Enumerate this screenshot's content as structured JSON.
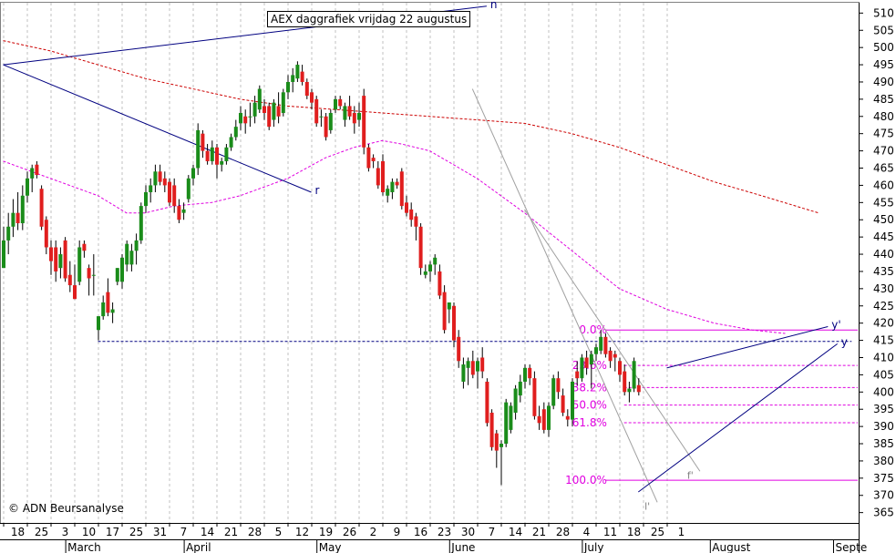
{
  "title": "AEX daggrafiek vrijdag 22 augustus",
  "credit": "© ADN Beursanalyse",
  "colors": {
    "up": "#1a8c1a",
    "down": "#e01e1e",
    "wick": "#000000",
    "ma_short": "#e000e0",
    "ma_long": "#cc0000",
    "trendline": "#000080",
    "channel": "#a0a0a0",
    "fib": "#e000e0",
    "grid": "#c0c0c0"
  },
  "chart_data": {
    "type": "candlestick",
    "title": "AEX daggrafiek vrijdag 22 augustus",
    "y_axis": {
      "position": "right",
      "min": 362,
      "max": 513,
      "ticks": [
        365,
        370,
        375,
        380,
        385,
        390,
        395,
        400,
        405,
        410,
        415,
        420,
        425,
        430,
        435,
        440,
        445,
        450,
        455,
        460,
        465,
        470,
        475,
        480,
        485,
        490,
        495,
        500,
        505,
        510
      ]
    },
    "x_axis": {
      "day_labels": [
        "18",
        "25",
        "3",
        "10",
        "17",
        "25",
        "31",
        "7",
        "14",
        "21",
        "28",
        "5",
        "12",
        "19",
        "26",
        "2",
        "9",
        "16",
        "23",
        "30",
        "7",
        "14",
        "21",
        "28",
        "4",
        "11",
        "18",
        "25",
        "1"
      ],
      "month_labels": [
        "March",
        "April",
        "May",
        "June",
        "July",
        "August",
        "Septe"
      ]
    },
    "grid": "vertical dashed weekly",
    "candles": [
      {
        "o": 436,
        "h": 448,
        "l": 436,
        "c": 444
      },
      {
        "o": 444,
        "h": 452,
        "l": 440,
        "c": 448
      },
      {
        "o": 448,
        "h": 456,
        "l": 445,
        "c": 452
      },
      {
        "o": 452,
        "h": 458,
        "l": 447,
        "c": 449
      },
      {
        "o": 449,
        "h": 460,
        "l": 447,
        "c": 457
      },
      {
        "o": 457,
        "h": 464,
        "l": 455,
        "c": 462
      },
      {
        "o": 462,
        "h": 466,
        "l": 458,
        "c": 465
      },
      {
        "o": 466,
        "h": 467,
        "l": 462,
        "c": 463
      },
      {
        "o": 459,
        "h": 460,
        "l": 447,
        "c": 448
      },
      {
        "o": 450,
        "h": 451,
        "l": 440,
        "c": 442
      },
      {
        "o": 442,
        "h": 444,
        "l": 434,
        "c": 438
      },
      {
        "o": 442,
        "h": 444,
        "l": 432,
        "c": 435
      },
      {
        "o": 436,
        "h": 442,
        "l": 433,
        "c": 440
      },
      {
        "o": 444,
        "h": 445,
        "l": 432,
        "c": 433
      },
      {
        "o": 434,
        "h": 438,
        "l": 429,
        "c": 431
      },
      {
        "o": 431,
        "h": 437,
        "l": 427,
        "c": 427
      },
      {
        "o": 432,
        "h": 444,
        "l": 431,
        "c": 442
      },
      {
        "o": 443,
        "h": 444,
        "l": 439,
        "c": 441
      },
      {
        "o": 436,
        "h": 437,
        "l": 428,
        "c": 433
      },
      {
        "o": 434,
        "h": 440,
        "l": 428,
        "c": 434
      },
      {
        "o": 418,
        "h": 422,
        "l": 415,
        "c": 422
      },
      {
        "o": 422,
        "h": 428,
        "l": 421,
        "c": 426
      },
      {
        "o": 429,
        "h": 433,
        "l": 422,
        "c": 423
      },
      {
        "o": 423,
        "h": 426,
        "l": 420,
        "c": 424
      },
      {
        "o": 432,
        "h": 436,
        "l": 431,
        "c": 436
      },
      {
        "o": 432,
        "h": 440,
        "l": 430,
        "c": 439
      },
      {
        "o": 437,
        "h": 444,
        "l": 435,
        "c": 443
      },
      {
        "o": 437,
        "h": 443,
        "l": 435,
        "c": 441
      },
      {
        "o": 441,
        "h": 446,
        "l": 437,
        "c": 444
      },
      {
        "o": 444,
        "h": 455,
        "l": 443,
        "c": 454
      },
      {
        "o": 454,
        "h": 460,
        "l": 452,
        "c": 458
      },
      {
        "o": 458,
        "h": 462,
        "l": 455,
        "c": 460
      },
      {
        "o": 460,
        "h": 466,
        "l": 458,
        "c": 464
      },
      {
        "o": 464,
        "h": 466,
        "l": 460,
        "c": 461
      },
      {
        "o": 462,
        "h": 464,
        "l": 458,
        "c": 460
      },
      {
        "o": 461,
        "h": 462,
        "l": 454,
        "c": 455
      },
      {
        "o": 460,
        "h": 462,
        "l": 452,
        "c": 454
      },
      {
        "o": 454,
        "h": 456,
        "l": 449,
        "c": 450
      },
      {
        "o": 452,
        "h": 455,
        "l": 450,
        "c": 453
      },
      {
        "o": 456,
        "h": 463,
        "l": 455,
        "c": 462
      },
      {
        "o": 462,
        "h": 466,
        "l": 460,
        "c": 465
      },
      {
        "o": 465,
        "h": 478,
        "l": 463,
        "c": 476
      },
      {
        "o": 475,
        "h": 476,
        "l": 468,
        "c": 470
      },
      {
        "o": 470,
        "h": 472,
        "l": 466,
        "c": 467
      },
      {
        "o": 467,
        "h": 473,
        "l": 466,
        "c": 471
      },
      {
        "o": 471,
        "h": 472,
        "l": 462,
        "c": 466
      },
      {
        "o": 466,
        "h": 468,
        "l": 464,
        "c": 467
      },
      {
        "o": 467,
        "h": 472,
        "l": 466,
        "c": 471
      },
      {
        "o": 471,
        "h": 475,
        "l": 470,
        "c": 474
      },
      {
        "o": 474,
        "h": 479,
        "l": 473,
        "c": 477
      },
      {
        "o": 478,
        "h": 483,
        "l": 476,
        "c": 481
      },
      {
        "o": 480,
        "h": 482,
        "l": 475,
        "c": 478
      },
      {
        "o": 480,
        "h": 484,
        "l": 477,
        "c": 480
      },
      {
        "o": 480,
        "h": 486,
        "l": 478,
        "c": 484
      },
      {
        "o": 482,
        "h": 489,
        "l": 481,
        "c": 488
      },
      {
        "o": 483,
        "h": 485,
        "l": 479,
        "c": 481
      },
      {
        "o": 483,
        "h": 484,
        "l": 476,
        "c": 477
      },
      {
        "o": 479,
        "h": 485,
        "l": 477,
        "c": 484
      },
      {
        "o": 483,
        "h": 487,
        "l": 478,
        "c": 480
      },
      {
        "o": 481,
        "h": 488,
        "l": 480,
        "c": 487
      },
      {
        "o": 487,
        "h": 492,
        "l": 485,
        "c": 490
      },
      {
        "o": 490,
        "h": 494,
        "l": 487,
        "c": 492
      },
      {
        "o": 491,
        "h": 496,
        "l": 490,
        "c": 495
      },
      {
        "o": 493,
        "h": 495,
        "l": 489,
        "c": 490
      },
      {
        "o": 490,
        "h": 491,
        "l": 485,
        "c": 486
      },
      {
        "o": 487,
        "h": 488,
        "l": 482,
        "c": 484
      },
      {
        "o": 485,
        "h": 486,
        "l": 477,
        "c": 478
      },
      {
        "o": 480,
        "h": 482,
        "l": 477,
        "c": 480
      },
      {
        "o": 480,
        "h": 481,
        "l": 473,
        "c": 474
      },
      {
        "o": 476,
        "h": 482,
        "l": 475,
        "c": 481
      },
      {
        "o": 482,
        "h": 486,
        "l": 481,
        "c": 485
      },
      {
        "o": 485,
        "h": 486,
        "l": 482,
        "c": 483
      },
      {
        "o": 479,
        "h": 484,
        "l": 477,
        "c": 483
      },
      {
        "o": 483,
        "h": 486,
        "l": 479,
        "c": 480
      },
      {
        "o": 481,
        "h": 483,
        "l": 475,
        "c": 478
      },
      {
        "o": 479,
        "h": 484,
        "l": 477,
        "c": 481
      },
      {
        "o": 486,
        "h": 488,
        "l": 469,
        "c": 471
      },
      {
        "o": 471,
        "h": 472,
        "l": 464,
        "c": 465
      },
      {
        "o": 468,
        "h": 469,
        "l": 465,
        "c": 467
      },
      {
        "o": 465,
        "h": 467,
        "l": 459,
        "c": 460
      },
      {
        "o": 467,
        "h": 469,
        "l": 457,
        "c": 458
      },
      {
        "o": 457,
        "h": 460,
        "l": 455,
        "c": 459
      },
      {
        "o": 458,
        "h": 462,
        "l": 456,
        "c": 461
      },
      {
        "o": 461,
        "h": 462,
        "l": 459,
        "c": 460
      },
      {
        "o": 464,
        "h": 465,
        "l": 453,
        "c": 454
      },
      {
        "o": 455,
        "h": 457,
        "l": 451,
        "c": 452
      },
      {
        "o": 453,
        "h": 455,
        "l": 448,
        "c": 450
      },
      {
        "o": 451,
        "h": 452,
        "l": 444,
        "c": 448
      },
      {
        "o": 448,
        "h": 449,
        "l": 434,
        "c": 436
      },
      {
        "o": 434,
        "h": 437,
        "l": 433,
        "c": 435
      },
      {
        "o": 435,
        "h": 438,
        "l": 432,
        "c": 437
      },
      {
        "o": 437,
        "h": 440,
        "l": 434,
        "c": 439
      },
      {
        "o": 435,
        "h": 437,
        "l": 427,
        "c": 428
      },
      {
        "o": 429,
        "h": 431,
        "l": 417,
        "c": 418
      },
      {
        "o": 424,
        "h": 426,
        "l": 420,
        "c": 426
      },
      {
        "o": 425,
        "h": 426,
        "l": 413,
        "c": 415
      },
      {
        "o": 416,
        "h": 418,
        "l": 407,
        "c": 409
      },
      {
        "o": 403,
        "h": 410,
        "l": 401,
        "c": 408
      },
      {
        "o": 407,
        "h": 410,
        "l": 402,
        "c": 409
      },
      {
        "o": 409,
        "h": 412,
        "l": 404,
        "c": 405
      },
      {
        "o": 406,
        "h": 410,
        "l": 401,
        "c": 409
      },
      {
        "o": 410,
        "h": 413,
        "l": 404,
        "c": 406
      },
      {
        "o": 403,
        "h": 404,
        "l": 390,
        "c": 391
      },
      {
        "o": 394,
        "h": 395,
        "l": 383,
        "c": 384
      },
      {
        "o": 388,
        "h": 389,
        "l": 378,
        "c": 383
      },
      {
        "o": 384,
        "h": 386,
        "l": 373,
        "c": 385
      },
      {
        "o": 385,
        "h": 398,
        "l": 384,
        "c": 397
      },
      {
        "o": 389,
        "h": 397,
        "l": 388,
        "c": 396
      },
      {
        "o": 394,
        "h": 402,
        "l": 392,
        "c": 401
      },
      {
        "o": 399,
        "h": 405,
        "l": 397,
        "c": 403
      },
      {
        "o": 403,
        "h": 408,
        "l": 401,
        "c": 407
      },
      {
        "o": 407,
        "h": 408,
        "l": 402,
        "c": 404
      },
      {
        "o": 404,
        "h": 406,
        "l": 392,
        "c": 393
      },
      {
        "o": 393,
        "h": 396,
        "l": 389,
        "c": 391
      },
      {
        "o": 395,
        "h": 397,
        "l": 388,
        "c": 389
      },
      {
        "o": 389,
        "h": 397,
        "l": 387,
        "c": 396
      },
      {
        "o": 396,
        "h": 405,
        "l": 395,
        "c": 404
      },
      {
        "o": 404,
        "h": 406,
        "l": 398,
        "c": 400
      },
      {
        "o": 399,
        "h": 401,
        "l": 393,
        "c": 394
      },
      {
        "o": 393,
        "h": 395,
        "l": 390,
        "c": 392
      },
      {
        "o": 392,
        "h": 404,
        "l": 390,
        "c": 403
      },
      {
        "o": 406,
        "h": 409,
        "l": 402,
        "c": 404
      },
      {
        "o": 404,
        "h": 411,
        "l": 403,
        "c": 410
      },
      {
        "o": 410,
        "h": 412,
        "l": 405,
        "c": 407
      },
      {
        "o": 408,
        "h": 412,
        "l": 401,
        "c": 411
      },
      {
        "o": 411,
        "h": 414,
        "l": 409,
        "c": 413
      },
      {
        "o": 412,
        "h": 418,
        "l": 411,
        "c": 416
      },
      {
        "o": 416,
        "h": 417,
        "l": 410,
        "c": 411
      },
      {
        "o": 412,
        "h": 413,
        "l": 407,
        "c": 409
      },
      {
        "o": 411,
        "h": 412,
        "l": 406,
        "c": 410
      },
      {
        "o": 409,
        "h": 410,
        "l": 403,
        "c": 405
      },
      {
        "o": 406,
        "h": 408,
        "l": 399,
        "c": 400
      },
      {
        "o": 400,
        "h": 403,
        "l": 397,
        "c": 401
      },
      {
        "o": 401,
        "h": 410,
        "l": 400,
        "c": 409
      },
      {
        "o": 402,
        "h": 404,
        "l": 399,
        "c": 400
      }
    ],
    "moving_averages": [
      {
        "style": "dashed",
        "color": "#cc0000",
        "points": [
          [
            0,
            502
          ],
          [
            10,
            499
          ],
          [
            20,
            495
          ],
          [
            30,
            491
          ],
          [
            40,
            488
          ],
          [
            50,
            485
          ],
          [
            60,
            483
          ],
          [
            70,
            482
          ],
          [
            80,
            481
          ],
          [
            90,
            480
          ],
          [
            100,
            479
          ],
          [
            110,
            478
          ],
          [
            120,
            475
          ],
          [
            130,
            471
          ],
          [
            140,
            466
          ],
          [
            150,
            461
          ],
          [
            160,
            457
          ],
          [
            172,
            452
          ]
        ]
      },
      {
        "style": "dashed",
        "color": "#e000e0",
        "points": [
          [
            0,
            467
          ],
          [
            10,
            462
          ],
          [
            20,
            457
          ],
          [
            26,
            452
          ],
          [
            30,
            452
          ],
          [
            36,
            454
          ],
          [
            44,
            455
          ],
          [
            50,
            457
          ],
          [
            60,
            462
          ],
          [
            68,
            468
          ],
          [
            74,
            471
          ],
          [
            80,
            473
          ],
          [
            84,
            472
          ],
          [
            90,
            470
          ],
          [
            100,
            462
          ],
          [
            110,
            452
          ],
          [
            120,
            441
          ],
          [
            130,
            430
          ],
          [
            140,
            424
          ],
          [
            150,
            420
          ],
          [
            158,
            418
          ],
          [
            165,
            417
          ]
        ]
      }
    ],
    "trendlines": [
      {
        "label": "n",
        "color": "#000080",
        "from": [
          0,
          495
        ],
        "to": [
          102,
          512
        ]
      },
      {
        "label": "r",
        "color": "#000080",
        "from": [
          0,
          495
        ],
        "to": [
          65,
          458
        ]
      },
      {
        "label": "y'",
        "color": "#000080",
        "from": [
          140,
          407
        ],
        "to": [
          174,
          419
        ]
      },
      {
        "label": "y",
        "color": "#000080",
        "from": [
          134,
          371
        ],
        "to": [
          176,
          414
        ]
      }
    ],
    "channels": [
      {
        "label": "l'",
        "color": "#a0a0a0",
        "from": [
          99,
          488
        ],
        "to": [
          138,
          368
        ]
      },
      {
        "label": "f'",
        "color": "#a0a0a0",
        "from": [
          110,
          453
        ],
        "to": [
          147,
          377
        ]
      }
    ],
    "support_level": {
      "value": 414.7,
      "from_x": 20,
      "to_x": 179,
      "color": "#000080"
    },
    "fibonacci": {
      "high": 418,
      "low": 374.4,
      "levels": [
        {
          "label": "0.0%",
          "value": 418
        },
        {
          "label": "23.6%",
          "value": 407.7
        },
        {
          "label": "38.2%",
          "value": 401.3
        },
        {
          "label": "50.0%",
          "value": 396.2
        },
        {
          "label": "61.8%",
          "value": 391.1
        },
        {
          "label": "100.0%",
          "value": 374.4
        }
      ]
    }
  }
}
